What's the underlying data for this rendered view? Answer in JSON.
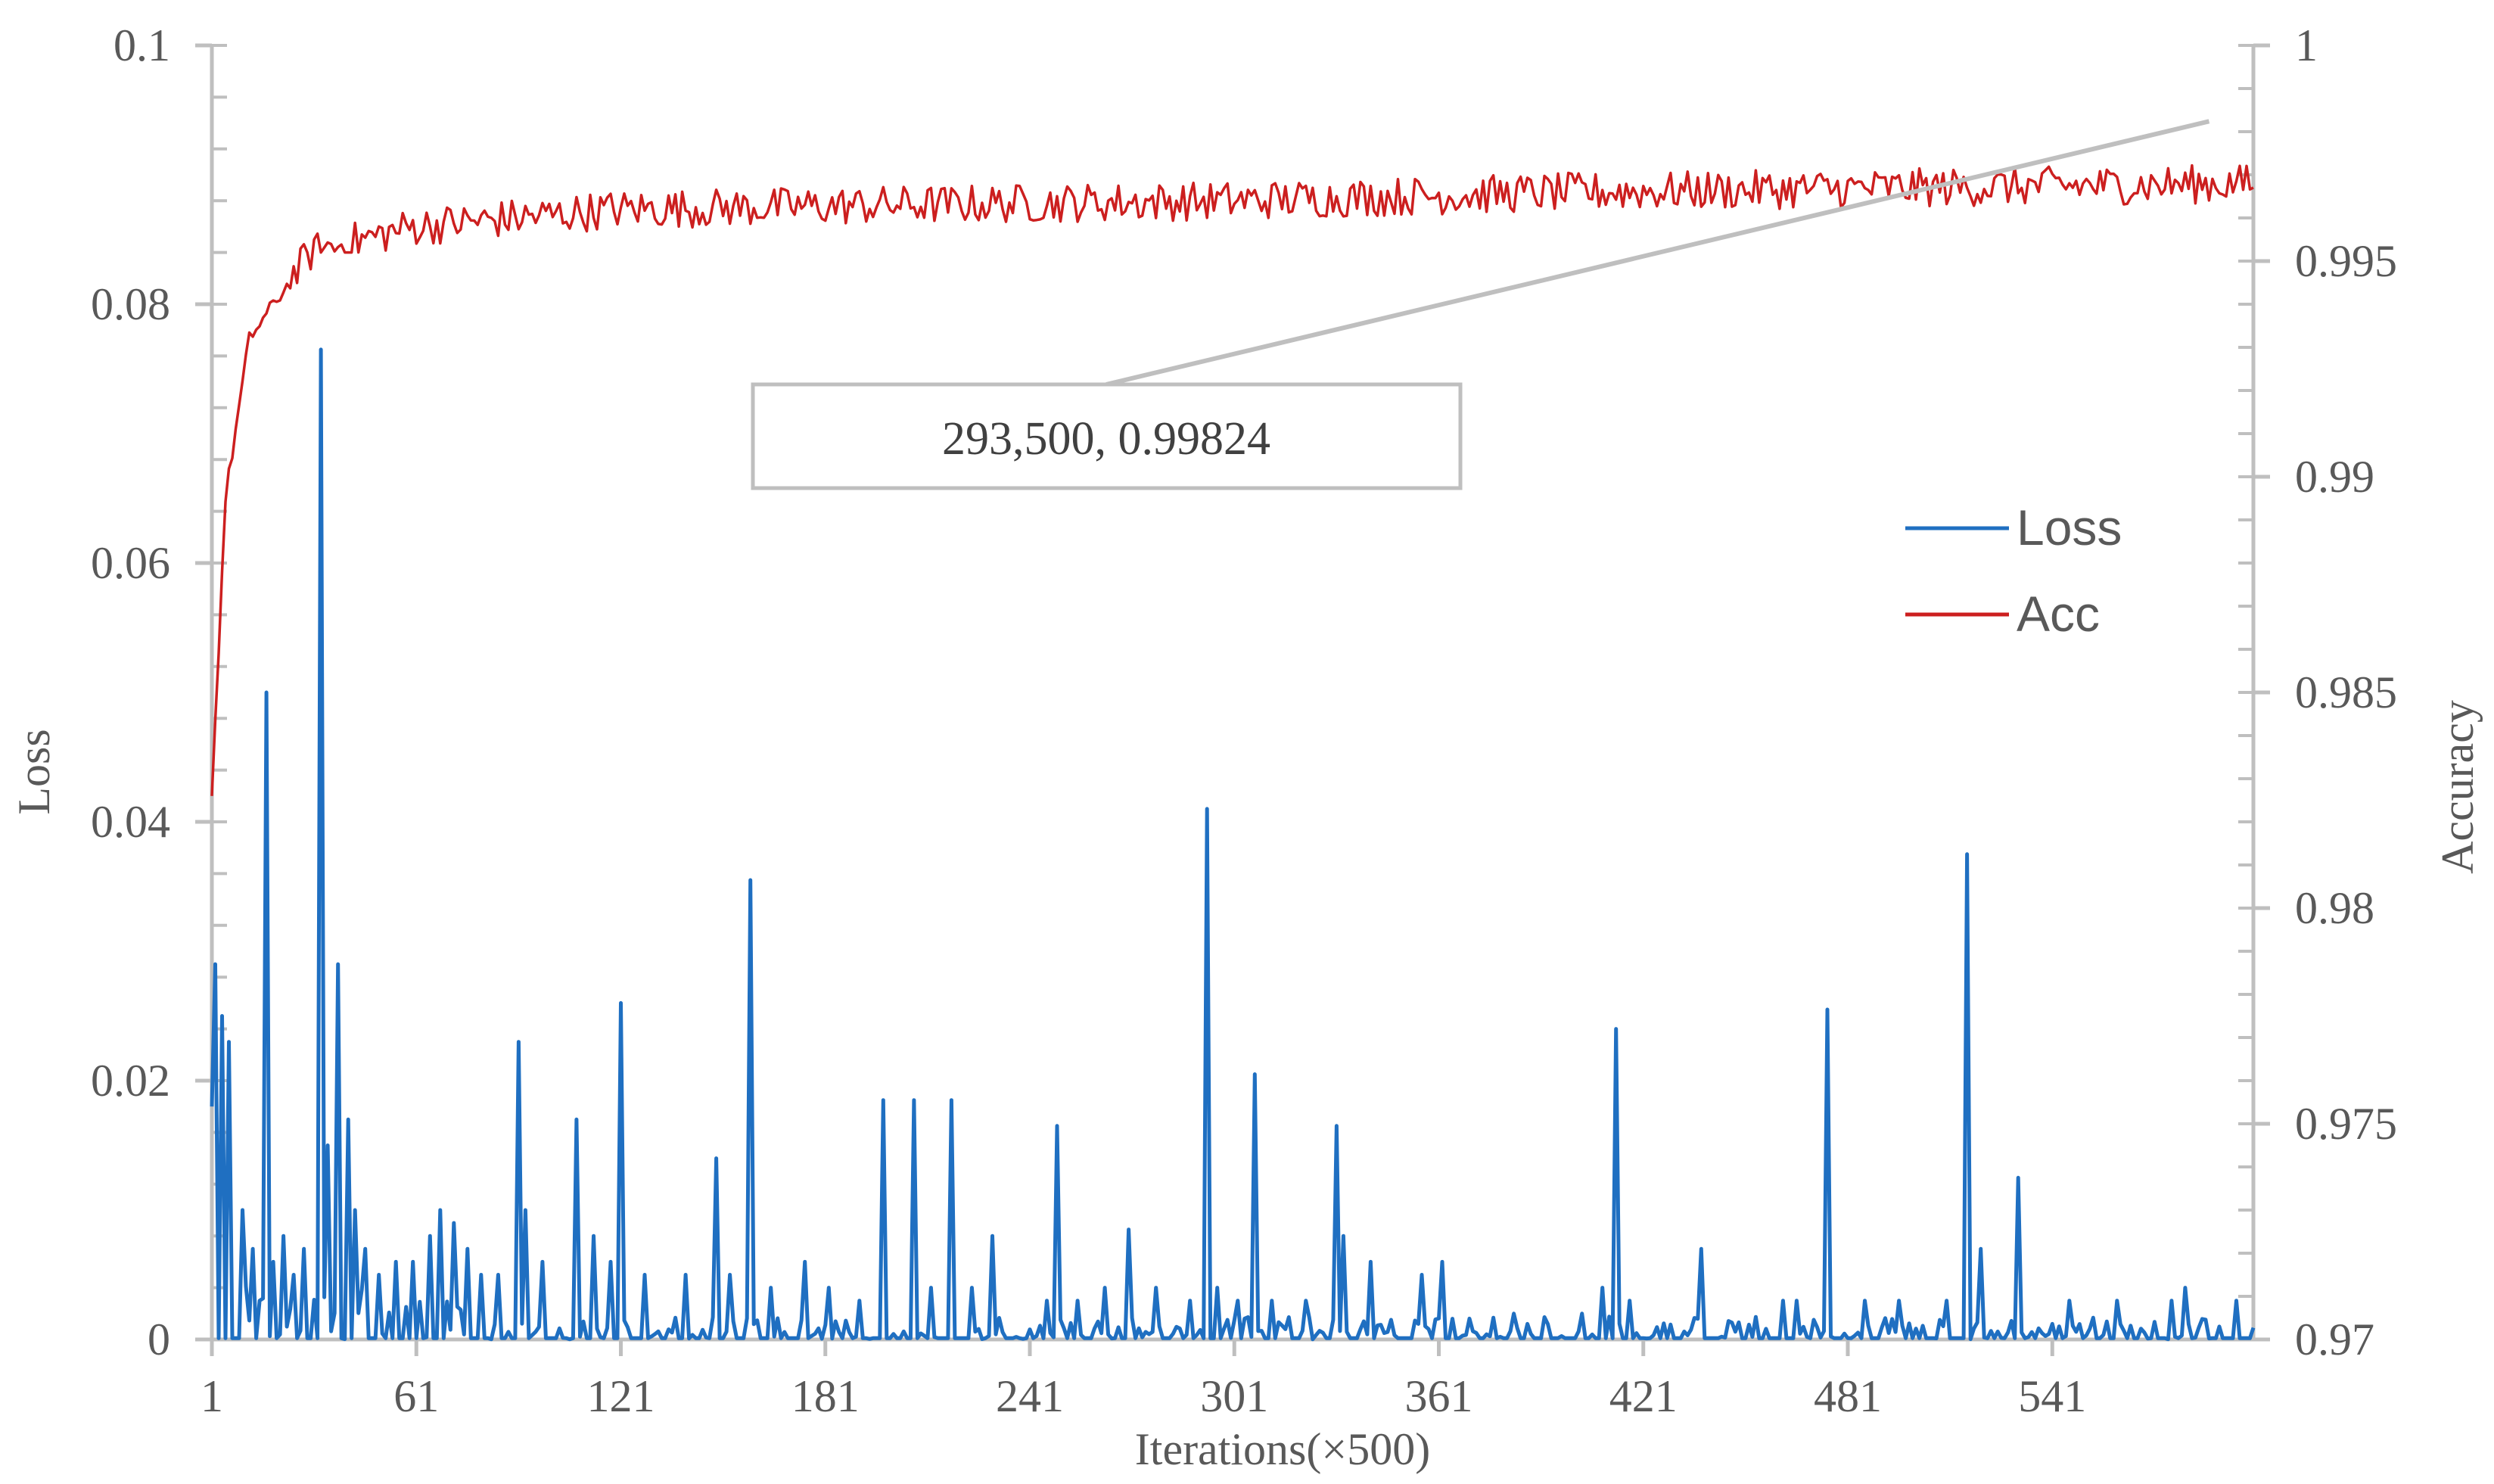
{
  "chart_data": {
    "type": "line",
    "xlabel": "Iterations(×500)",
    "ylabel_left": "Loss",
    "ylabel_right": "Accuracy",
    "x_ticks": [
      "1",
      "61",
      "121",
      "181",
      "241",
      "301",
      "361",
      "421",
      "481",
      "541"
    ],
    "x_range": [
      1,
      600
    ],
    "y_left_ticks": [
      "0",
      "0.02",
      "0.04",
      "0.06",
      "0.08",
      "0.1"
    ],
    "y_left_range": [
      0,
      0.1
    ],
    "y_right_ticks": [
      "0.97",
      "0.975",
      "0.98",
      "0.985",
      "0.99",
      "0.995",
      "1"
    ],
    "y_right_range": [
      0.97,
      1.0
    ],
    "legend_position": "right",
    "series": [
      {
        "name": "Loss",
        "axis": "left",
        "color": "#1f6fc1",
        "baseline": 0.0005,
        "noise": 0.003,
        "peaks": [
          [
            1,
            0.018
          ],
          [
            2,
            0.029
          ],
          [
            4,
            0.025
          ],
          [
            6,
            0.023
          ],
          [
            10,
            0.01
          ],
          [
            13,
            0.007
          ],
          [
            15,
            0.003
          ],
          [
            17,
            0.05
          ],
          [
            19,
            0.006
          ],
          [
            22,
            0.008
          ],
          [
            25,
            0.005
          ],
          [
            28,
            0.007
          ],
          [
            31,
            0.002
          ],
          [
            33,
            0.0765
          ],
          [
            35,
            0.015
          ],
          [
            38,
            0.029
          ],
          [
            41,
            0.017
          ],
          [
            43,
            0.01
          ],
          [
            46,
            0.007
          ],
          [
            50,
            0.005
          ],
          [
            55,
            0.006
          ],
          [
            60,
            0.006
          ],
          [
            65,
            0.008
          ],
          [
            68,
            0.01
          ],
          [
            72,
            0.009
          ],
          [
            76,
            0.007
          ],
          [
            80,
            0.005
          ],
          [
            85,
            0.005
          ],
          [
            91,
            0.023
          ],
          [
            93,
            0.01
          ],
          [
            98,
            0.006
          ],
          [
            108,
            0.017
          ],
          [
            113,
            0.008
          ],
          [
            118,
            0.006
          ],
          [
            121,
            0.026
          ],
          [
            128,
            0.005
          ],
          [
            140,
            0.005
          ],
          [
            149,
            0.014
          ],
          [
            153,
            0.005
          ],
          [
            159,
            0.0355
          ],
          [
            165,
            0.004
          ],
          [
            175,
            0.006
          ],
          [
            182,
            0.004
          ],
          [
            191,
            0.003
          ],
          [
            198,
            0.0185
          ],
          [
            207,
            0.0185
          ],
          [
            212,
            0.004
          ],
          [
            218,
            0.0185
          ],
          [
            224,
            0.004
          ],
          [
            230,
            0.008
          ],
          [
            246,
            0.003
          ],
          [
            249,
            0.0165
          ],
          [
            255,
            0.003
          ],
          [
            263,
            0.004
          ],
          [
            270,
            0.0085
          ],
          [
            278,
            0.004
          ],
          [
            288,
            0.003
          ],
          [
            293,
            0.041
          ],
          [
            296,
            0.004
          ],
          [
            302,
            0.003
          ],
          [
            307,
            0.0205
          ],
          [
            312,
            0.003
          ],
          [
            322,
            0.003
          ],
          [
            331,
            0.0165
          ],
          [
            333,
            0.008
          ],
          [
            341,
            0.006
          ],
          [
            356,
            0.005
          ],
          [
            362,
            0.006
          ],
          [
            383,
            0.002
          ],
          [
            403,
            0.002
          ],
          [
            409,
            0.004
          ],
          [
            413,
            0.024
          ],
          [
            417,
            0.003
          ],
          [
            438,
            0.007
          ],
          [
            462,
            0.003
          ],
          [
            466,
            0.003
          ],
          [
            475,
            0.0255
          ],
          [
            486,
            0.003
          ],
          [
            496,
            0.003
          ],
          [
            510,
            0.003
          ],
          [
            516,
            0.0375
          ],
          [
            520,
            0.007
          ],
          [
            531,
            0.0125
          ],
          [
            546,
            0.003
          ],
          [
            560,
            0.003
          ],
          [
            576,
            0.003
          ],
          [
            580,
            0.004
          ],
          [
            590,
            0.001
          ],
          [
            595,
            0.003
          ]
        ]
      },
      {
        "name": "Acc",
        "axis": "right",
        "color": "#cc1f1f",
        "start": 0.9826,
        "trend": [
          [
            1,
            0.9826
          ],
          [
            5,
            0.9895
          ],
          [
            12,
            0.9932
          ],
          [
            30,
            0.9952
          ],
          [
            60,
            0.9958
          ],
          [
            120,
            0.9962
          ],
          [
            200,
            0.9963
          ],
          [
            300,
            0.9964
          ],
          [
            400,
            0.9966
          ],
          [
            500,
            0.9967
          ],
          [
            600,
            0.9968
          ]
        ],
        "noise": 0.00045,
        "min_after_warmup": 0.9952,
        "max": 0.9983
      }
    ],
    "annotations": [
      {
        "text": "293,500, 0.99824",
        "x": 587,
        "y": 0.99824,
        "series": "Acc"
      }
    ]
  }
}
